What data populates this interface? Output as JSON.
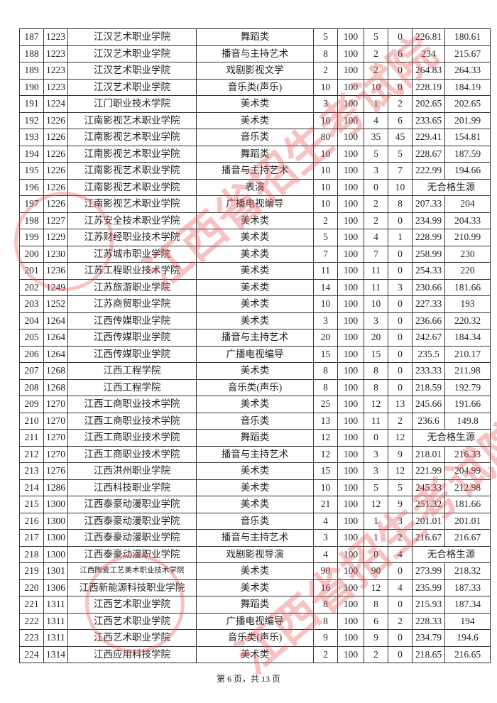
{
  "watermark": "江西省招生考试院",
  "footer": "第 6 页，共 13 页",
  "rows": [
    [
      "187",
      "1223",
      "江汉艺术职业学院",
      "舞蹈类",
      "5",
      "100",
      "5",
      "0",
      "226.81",
      "180.61"
    ],
    [
      "188",
      "1223",
      "江汉艺术职业学院",
      "播音与主持艺术",
      "8",
      "100",
      "2",
      "6",
      "234",
      "215.67"
    ],
    [
      "189",
      "1223",
      "江汉艺术职业学院",
      "戏剧影视文学",
      "2",
      "100",
      "2",
      "0",
      "264.83",
      "264.33"
    ],
    [
      "190",
      "1223",
      "江汉艺术职业学院",
      "音乐类(声乐)",
      "10",
      "100",
      "10",
      "0",
      "228.19",
      "184.19"
    ],
    [
      "191",
      "1224",
      "江门职业技术学院",
      "美术类",
      "3",
      "100",
      "1",
      "2",
      "202.65",
      "202.65"
    ],
    [
      "192",
      "1226",
      "江南影视艺术职业学院",
      "美术类",
      "10",
      "100",
      "4",
      "6",
      "233.65",
      "201.99"
    ],
    [
      "193",
      "1226",
      "江南影视艺术职业学院",
      "音乐类",
      "80",
      "100",
      "35",
      "45",
      "229.41",
      "154.81"
    ],
    [
      "194",
      "1226",
      "江南影视艺术职业学院",
      "舞蹈类",
      "10",
      "100",
      "5",
      "5",
      "228.67",
      "187.59"
    ],
    [
      "195",
      "1226",
      "江南影视艺术职业学院",
      "播音与主持艺术",
      "10",
      "100",
      "3",
      "7",
      "222.99",
      "194.66"
    ],
    [
      "196",
      "1226",
      "江南影视艺术职业学院",
      "表演",
      "10",
      "100",
      "0",
      "10",
      "无合格生源"
    ],
    [
      "197",
      "1226",
      "江南影视艺术职业学院",
      "广播电视编导",
      "10",
      "100",
      "2",
      "8",
      "207.33",
      "204"
    ],
    [
      "198",
      "1227",
      "江苏安全技术职业学院",
      "美术类",
      "2",
      "100",
      "2",
      "0",
      "234.99",
      "204.33"
    ],
    [
      "199",
      "1229",
      "江苏财经职业技术学院",
      "美术类",
      "5",
      "100",
      "4",
      "1",
      "228.99",
      "210.99"
    ],
    [
      "200",
      "1230",
      "江苏城市职业学院",
      "美术类",
      "7",
      "100",
      "7",
      "0",
      "258.99",
      "230"
    ],
    [
      "201",
      "1236",
      "江苏工程职业技术学院",
      "美术类",
      "11",
      "100",
      "11",
      "0",
      "254.33",
      "220"
    ],
    [
      "202",
      "1249",
      "江苏旅游职业学院",
      "美术类",
      "14",
      "100",
      "11",
      "3",
      "230.66",
      "181.66"
    ],
    [
      "203",
      "1252",
      "江苏商贸职业学院",
      "美术类",
      "10",
      "100",
      "10",
      "0",
      "227.33",
      "193"
    ],
    [
      "204",
      "1264",
      "江西传媒职业学院",
      "美术类",
      "3",
      "100",
      "3",
      "0",
      "236.66",
      "220.32"
    ],
    [
      "205",
      "1264",
      "江西传媒职业学院",
      "播音与主持艺术",
      "20",
      "100",
      "20",
      "0",
      "242.67",
      "184.34"
    ],
    [
      "206",
      "1264",
      "江西传媒职业学院",
      "广播电视编导",
      "15",
      "100",
      "15",
      "0",
      "235.5",
      "210.17"
    ],
    [
      "207",
      "1268",
      "江西工程学院",
      "美术类",
      "8",
      "100",
      "8",
      "0",
      "233.33",
      "211.98"
    ],
    [
      "208",
      "1268",
      "江西工程学院",
      "音乐类(声乐)",
      "8",
      "100",
      "8",
      "0",
      "218.59",
      "192.79"
    ],
    [
      "209",
      "1270",
      "江西工商职业技术学院",
      "美术类",
      "25",
      "100",
      "12",
      "13",
      "245.66",
      "191.66"
    ],
    [
      "210",
      "1270",
      "江西工商职业技术学院",
      "音乐类",
      "13",
      "100",
      "11",
      "2",
      "236.6",
      "149.8"
    ],
    [
      "211",
      "1270",
      "江西工商职业技术学院",
      "舞蹈类",
      "12",
      "100",
      "0",
      "12",
      "无合格生源"
    ],
    [
      "212",
      "1270",
      "江西工商职业技术学院",
      "播音与主持艺术",
      "12",
      "100",
      "3",
      "9",
      "218.01",
      "216.33"
    ],
    [
      "213",
      "1276",
      "江西洪州职业学院",
      "美术类",
      "15",
      "100",
      "3",
      "12",
      "221.99",
      "204.99"
    ],
    [
      "214",
      "1286",
      "江西科技职业学院",
      "美术类",
      "10",
      "100",
      "5",
      "5",
      "245.33",
      "212.98"
    ],
    [
      "215",
      "1300",
      "江西泰豪动漫职业学院",
      "美术类",
      "21",
      "100",
      "12",
      "9",
      "251.32",
      "181.66"
    ],
    [
      "216",
      "1300",
      "江西泰豪动漫职业学院",
      "音乐类",
      "4",
      "100",
      "1",
      "3",
      "201.01",
      "201.01"
    ],
    [
      "217",
      "1300",
      "江西泰豪动漫职业学院",
      "播音与主持艺术",
      "3",
      "100",
      "1",
      "2",
      "216.67",
      "216.67"
    ],
    [
      "218",
      "1300",
      "江西泰豪动漫职业学院",
      "戏剧影视导演",
      "4",
      "100",
      "0",
      "4",
      "无合格生源"
    ],
    [
      "219",
      "1301",
      "江西陶瓷工艺美术职业技术学院",
      "美术类",
      "90",
      "100",
      "90",
      "0",
      "273.99",
      "218.32"
    ],
    [
      "220",
      "1306",
      "江西新能源科技职业学院",
      "美术类",
      "16",
      "100",
      "12",
      "4",
      "235.99",
      "187.33"
    ],
    [
      "221",
      "1311",
      "江西艺术职业学院",
      "舞蹈类",
      "8",
      "100",
      "8",
      "0",
      "215.93",
      "187.34"
    ],
    [
      "222",
      "1311",
      "江西艺术职业学院",
      "广播电视编导",
      "8",
      "100",
      "6",
      "2",
      "228.33",
      "194"
    ],
    [
      "223",
      "1311",
      "江西艺术职业学院",
      "音乐类(声乐)",
      "9",
      "100",
      "9",
      "0",
      "234.79",
      "194.6"
    ],
    [
      "224",
      "1314",
      "江西应用科技学院",
      "美术类",
      "2",
      "100",
      "2",
      "0",
      "218.65",
      "216.65"
    ]
  ]
}
